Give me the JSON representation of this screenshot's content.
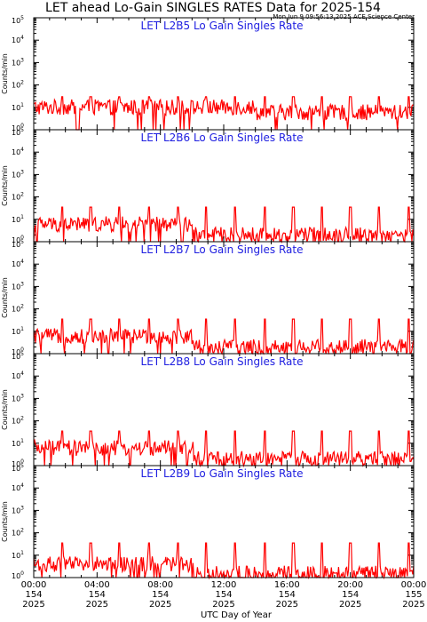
{
  "figure": {
    "title": "LET ahead Lo-Gain SINGLES RATES Data for 2025-154",
    "timestamp": "Mon Jun  9 09:56:13 2025 ACE Science Center",
    "xaxis_title": "UTC Day of Year"
  },
  "colors": {
    "trace": "#ff0000",
    "panel_title": "#2020e0",
    "axes": "#000000",
    "background": "#ffffff"
  },
  "chart_data": [
    {
      "type": "line",
      "title": "LET L2B5 Lo Gain Singles Rate",
      "ylabel": "Counts/min",
      "yscale": "log",
      "ylim_exp": [
        0,
        5
      ],
      "xlim_hours": [
        0,
        24
      ],
      "baseline_fraction_of_day": 0.58,
      "approx_level": {
        "first_half": 10,
        "second_half": 6
      },
      "spike_peak_counts": 30,
      "spike_hours": [
        1.8,
        3.6,
        5.4,
        7.3,
        9.1,
        10.9,
        12.7,
        14.6,
        16.4,
        18.2,
        20.0,
        21.8,
        23.7
      ]
    },
    {
      "type": "line",
      "title": "LET L2B6 Lo Gain Singles Rate",
      "ylabel": "Counts/min",
      "yscale": "log",
      "ylim_exp": [
        0,
        5
      ],
      "xlim_hours": [
        0,
        24
      ],
      "baseline_fraction_of_day": 0.42,
      "approx_level": {
        "first_half": 6,
        "second_half": 2
      },
      "spike_peak_counts": 35,
      "spike_hours": [
        1.8,
        3.6,
        5.4,
        7.3,
        9.1,
        10.9,
        12.7,
        14.6,
        16.4,
        18.2,
        20.0,
        21.8,
        23.7
      ]
    },
    {
      "type": "line",
      "title": "LET L2B7 Lo Gain Singles Rate",
      "ylabel": "Counts/min",
      "yscale": "log",
      "ylim_exp": [
        0,
        5
      ],
      "xlim_hours": [
        0,
        24
      ],
      "baseline_fraction_of_day": 0.42,
      "approx_level": {
        "first_half": 6,
        "second_half": 2
      },
      "spike_peak_counts": 35,
      "spike_hours": [
        1.8,
        3.6,
        5.4,
        7.3,
        9.1,
        10.9,
        12.7,
        14.6,
        16.4,
        18.2,
        20.0,
        21.8,
        23.7
      ]
    },
    {
      "type": "line",
      "title": "LET L2B8 Lo Gain Singles Rate",
      "ylabel": "Counts/min",
      "yscale": "log",
      "ylim_exp": [
        0,
        5
      ],
      "xlim_hours": [
        0,
        24
      ],
      "baseline_fraction_of_day": 0.42,
      "approx_level": {
        "first_half": 6,
        "second_half": 2
      },
      "spike_peak_counts": 35,
      "spike_hours": [
        1.8,
        3.6,
        5.4,
        7.3,
        9.1,
        10.9,
        12.7,
        14.6,
        16.4,
        18.2,
        20.0,
        21.8,
        23.7
      ]
    },
    {
      "type": "line",
      "title": "LET L2B9 Lo Gain Singles Rate",
      "ylabel": "Counts/min",
      "yscale": "log",
      "ylim_exp": [
        0,
        5
      ],
      "xlim_hours": [
        0,
        24
      ],
      "baseline_fraction_of_day": 0.42,
      "approx_level": {
        "first_half": 4,
        "second_half": 1.5
      },
      "spike_peak_counts": 35,
      "spike_hours": [
        1.8,
        3.6,
        5.4,
        7.3,
        9.1,
        10.9,
        12.7,
        14.6,
        16.4,
        18.2,
        20.0,
        21.8,
        23.7
      ]
    }
  ],
  "x_ticks": [
    {
      "hours": 0,
      "time": "00:00",
      "doy": "154",
      "year": "2025"
    },
    {
      "hours": 4,
      "time": "04:00",
      "doy": "154",
      "year": "2025"
    },
    {
      "hours": 8,
      "time": "08:00",
      "doy": "154",
      "year": "2025"
    },
    {
      "hours": 12,
      "time": "12:00",
      "doy": "154",
      "year": "2025"
    },
    {
      "hours": 16,
      "time": "16:00",
      "doy": "154",
      "year": "2025"
    },
    {
      "hours": 20,
      "time": "20:00",
      "doy": "154",
      "year": "2025"
    },
    {
      "hours": 24,
      "time": "00:00",
      "doy": "155",
      "year": "2025"
    }
  ]
}
